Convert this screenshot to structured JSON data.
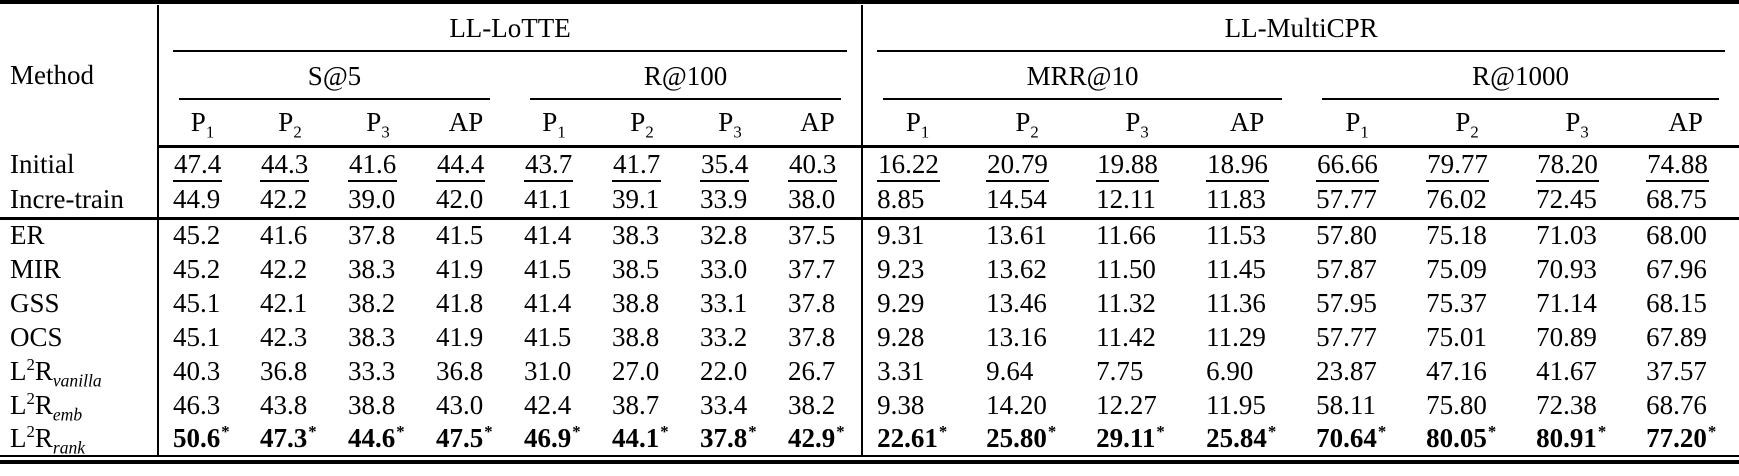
{
  "table": {
    "method_header": "Method",
    "groups": [
      {
        "label": "LL-LoTTE",
        "metrics": [
          {
            "label": "S@5"
          },
          {
            "label": "R@100"
          }
        ]
      },
      {
        "label": "LL-MultiCPR",
        "metrics": [
          {
            "label": "MRR@10"
          },
          {
            "label": "R@1000"
          }
        ]
      }
    ],
    "sub_columns": [
      {
        "text": "P",
        "sub": "1"
      },
      {
        "text": "P",
        "sub": "2"
      },
      {
        "text": "P",
        "sub": "3"
      },
      {
        "text": "AP"
      }
    ],
    "rows": [
      {
        "id": "initial",
        "method": [
          {
            "text": "Initial"
          }
        ],
        "style": "underline",
        "rule_after": false,
        "values": [
          "47.4",
          "44.3",
          "41.6",
          "44.4",
          "43.7",
          "41.7",
          "35.4",
          "40.3",
          "16.22",
          "20.79",
          "19.88",
          "18.96",
          "66.66",
          "79.77",
          "78.20",
          "74.88"
        ]
      },
      {
        "id": "incre-train",
        "method": [
          {
            "text": "Incre-train"
          }
        ],
        "style": "normal",
        "rule_after": true,
        "values": [
          "44.9",
          "42.2",
          "39.0",
          "42.0",
          "41.1",
          "39.1",
          "33.9",
          "38.0",
          "8.85",
          "14.54",
          "12.11",
          "11.83",
          "57.77",
          "76.02",
          "72.45",
          "68.75"
        ]
      },
      {
        "id": "er",
        "method": [
          {
            "text": "ER"
          }
        ],
        "style": "normal",
        "rule_after": false,
        "values": [
          "45.2",
          "41.6",
          "37.8",
          "41.5",
          "41.4",
          "38.3",
          "32.8",
          "37.5",
          "9.31",
          "13.61",
          "11.66",
          "11.53",
          "57.80",
          "75.18",
          "71.03",
          "68.00"
        ]
      },
      {
        "id": "mir",
        "method": [
          {
            "text": "MIR"
          }
        ],
        "style": "normal",
        "rule_after": false,
        "values": [
          "45.2",
          "42.2",
          "38.3",
          "41.9",
          "41.5",
          "38.5",
          "33.0",
          "37.7",
          "9.23",
          "13.62",
          "11.50",
          "11.45",
          "57.87",
          "75.09",
          "70.93",
          "67.96"
        ]
      },
      {
        "id": "gss",
        "method": [
          {
            "text": "GSS"
          }
        ],
        "style": "normal",
        "rule_after": false,
        "values": [
          "45.1",
          "42.1",
          "38.2",
          "41.8",
          "41.4",
          "38.8",
          "33.1",
          "37.8",
          "9.29",
          "13.46",
          "11.32",
          "11.36",
          "57.95",
          "75.37",
          "71.14",
          "68.15"
        ]
      },
      {
        "id": "ocs",
        "method": [
          {
            "text": "OCS"
          }
        ],
        "style": "normal",
        "rule_after": false,
        "values": [
          "45.1",
          "42.3",
          "38.3",
          "41.9",
          "41.5",
          "38.8",
          "33.2",
          "37.8",
          "9.28",
          "13.16",
          "11.42",
          "11.29",
          "57.77",
          "75.01",
          "70.89",
          "67.89"
        ]
      },
      {
        "id": "l2r-vanilla",
        "method": [
          {
            "text": "L"
          },
          {
            "text": "2",
            "style": "sup"
          },
          {
            "text": "R"
          },
          {
            "text": "vanilla",
            "style": "sub"
          }
        ],
        "style": "normal",
        "rule_after": false,
        "values": [
          "40.3",
          "36.8",
          "33.3",
          "36.8",
          "31.0",
          "27.0",
          "22.0",
          "26.7",
          "3.31",
          "9.64",
          "7.75",
          "6.90",
          "23.87",
          "47.16",
          "41.67",
          "37.57"
        ]
      },
      {
        "id": "l2r-emb",
        "method": [
          {
            "text": "L"
          },
          {
            "text": "2",
            "style": "sup"
          },
          {
            "text": "R"
          },
          {
            "text": "emb",
            "style": "sub"
          }
        ],
        "style": "normal",
        "rule_after": false,
        "values": [
          "46.3",
          "43.8",
          "38.8",
          "43.0",
          "42.4",
          "38.7",
          "33.4",
          "38.2",
          "9.38",
          "14.20",
          "12.27",
          "11.95",
          "58.11",
          "75.80",
          "72.38",
          "68.76"
        ]
      },
      {
        "id": "l2r-rank",
        "method": [
          {
            "text": "L"
          },
          {
            "text": "2",
            "style": "sup"
          },
          {
            "text": "R"
          },
          {
            "text": "rank",
            "style": "sub"
          }
        ],
        "style": "bold",
        "rule_after": false,
        "values": [
          "50.6*",
          "47.3*",
          "44.6*",
          "47.5*",
          "46.9*",
          "44.1*",
          "37.8*",
          "42.9*",
          "22.61*",
          "25.80*",
          "29.11*",
          "25.84*",
          "70.64*",
          "80.05*",
          "80.91*",
          "77.20*"
        ]
      }
    ]
  }
}
